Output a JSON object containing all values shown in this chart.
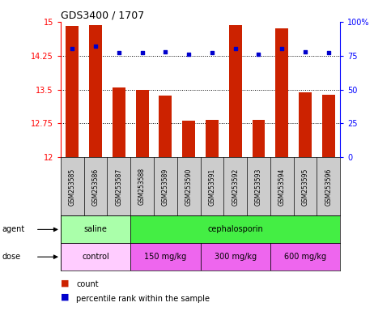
{
  "title": "GDS3400 / 1707",
  "samples": [
    "GSM253585",
    "GSM253586",
    "GSM253587",
    "GSM253588",
    "GSM253589",
    "GSM253590",
    "GSM253591",
    "GSM253592",
    "GSM253593",
    "GSM253594",
    "GSM253595",
    "GSM253596"
  ],
  "bar_values": [
    14.9,
    14.92,
    13.55,
    13.49,
    13.37,
    12.82,
    12.83,
    14.93,
    12.83,
    14.85,
    13.44,
    13.38
  ],
  "dot_values": [
    80,
    82,
    77,
    77,
    78,
    76,
    77,
    80,
    76,
    80,
    78,
    77
  ],
  "bar_color": "#cc2200",
  "dot_color": "#0000cc",
  "ylim_left": [
    12,
    15
  ],
  "ylim_right": [
    0,
    100
  ],
  "yticks_left": [
    12,
    12.75,
    13.5,
    14.25,
    15
  ],
  "yticks_right": [
    0,
    25,
    50,
    75,
    100
  ],
  "ytick_labels_left": [
    "12",
    "12.75",
    "13.5",
    "14.25",
    "15"
  ],
  "ytick_labels_right": [
    "0",
    "25",
    "50",
    "75",
    "100%"
  ],
  "hline_vals": [
    12.75,
    13.5,
    14.25
  ],
  "agent_groups": [
    {
      "label": "saline",
      "start": 0,
      "end": 3,
      "color": "#aaffaa"
    },
    {
      "label": "cephalosporin",
      "start": 3,
      "end": 12,
      "color": "#44ee44"
    }
  ],
  "dose_groups": [
    {
      "label": "control",
      "start": 0,
      "end": 3,
      "color": "#ffccff"
    },
    {
      "label": "150 mg/kg",
      "start": 3,
      "end": 6,
      "color": "#ee66ee"
    },
    {
      "label": "300 mg/kg",
      "start": 6,
      "end": 9,
      "color": "#ee66ee"
    },
    {
      "label": "600 mg/kg",
      "start": 9,
      "end": 12,
      "color": "#ee66ee"
    }
  ],
  "legend_count_color": "#cc2200",
  "legend_dot_color": "#0000cc",
  "sample_bg": "#cccccc",
  "plot_bg": "#ffffff"
}
